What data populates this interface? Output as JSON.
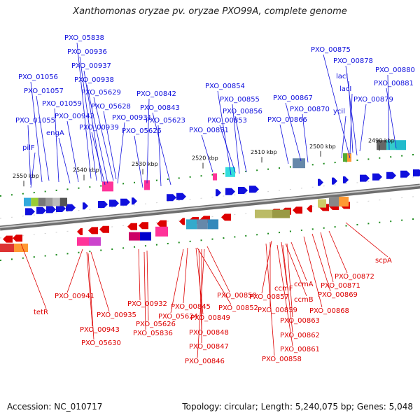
{
  "title": "Xanthomonas oryzae pv. oryzae PXO99A, complete genome",
  "footer": {
    "accession": "Accession: NC_010717",
    "summary": "Topology: circular; Length: 5,240,075 bp; Genes: 5,048"
  },
  "colors": {
    "forward": "#1010dd",
    "reverse": "#dd0000",
    "backbone": "#8c8c8c"
  },
  "ticks": [
    "2550 kbp",
    "2540 kbp",
    "2530 kbp",
    "2520 kbp",
    "2510 kbp",
    "2500 kbp",
    "2490 kbp"
  ],
  "top_labels": [
    "PXO_05838",
    "PXO_00936",
    "PXO_00937",
    "PXO_00938",
    "PXO_01056",
    "PXO_01057",
    "PXO_05629",
    "PXO_00842",
    "PXO_00854",
    "PXO_00875",
    "PXO_00878",
    "lacI",
    "PXO_00880",
    "PXO_00881",
    "lacI",
    "PXO_01059",
    "PXO_05628",
    "PXO_00843",
    "PXO_00855",
    "PXO_00867",
    "PXO_00879",
    "PXO_00942",
    "PXO_00931",
    "PXO_00856",
    "PXO_00870",
    "ycil",
    "PXO_01055",
    "PXO_00939",
    "PXO_05623",
    "PXO_00853",
    "PXO_00866",
    "engA",
    "PXO_05625",
    "PXO_00851",
    "pilF"
  ],
  "bottom_labels": [
    "scpA",
    "PXO_00872",
    "PXO_00871",
    "tetR",
    "PXO_00941",
    "PXO_00869",
    "ccmA",
    "PXO_00857",
    "ccmF",
    "PXO_00850",
    "ccmB",
    "PXO_00932",
    "PXO_00845",
    "PXO_00852",
    "PXO_00935",
    "PXO_05624",
    "PXO_00868",
    "PXO_00859",
    "PXO_00849",
    "PXO_05626",
    "PXO_00863",
    "PXO_00943",
    "PXO_05836",
    "PXO_00848",
    "PXO_00862",
    "PXO_05630",
    "PXO_00847",
    "PXO_00861",
    "PXO_00858",
    "PXO_00846"
  ]
}
